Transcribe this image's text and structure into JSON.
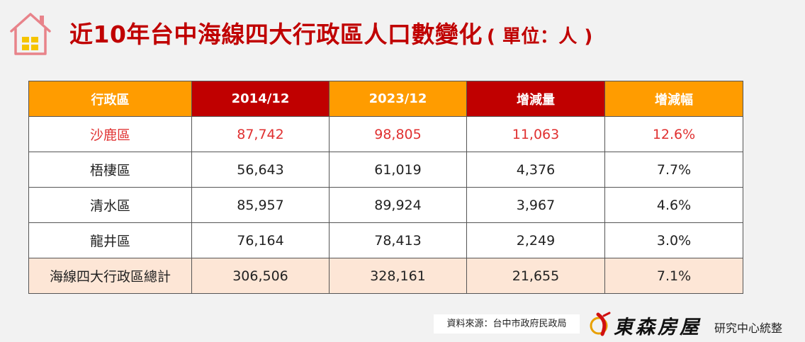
{
  "title": "近10年台中海線四大行政區人口數變化",
  "unit": "( 單位：人 )",
  "table": {
    "headers": [
      "行政區",
      "2014/12",
      "2023/12",
      "增減量",
      "增減幅"
    ],
    "rows": [
      [
        "沙鹿區",
        "87,742",
        "98,805",
        "11,063",
        "12.6%"
      ],
      [
        "梧棲區",
        "56,643",
        "61,019",
        "4,376",
        "7.7%"
      ],
      [
        "清水區",
        "85,957",
        "89,924",
        "3,967",
        "4.6%"
      ],
      [
        "龍井區",
        "76,164",
        "78,413",
        "2,249",
        "3.0%"
      ]
    ],
    "total": [
      "海線四大行政區總計",
      "306,506",
      "328,161",
      "21,655",
      "7.1%"
    ]
  },
  "colors": {
    "orange": "#ff9c00",
    "red": "#c00000",
    "highlight_text": "#e03030",
    "total_bg": "#fde6d6"
  },
  "source": "資料來源：台中市政府民政局",
  "brand": {
    "name": "東森房屋",
    "suffix": "研究中心統整"
  }
}
